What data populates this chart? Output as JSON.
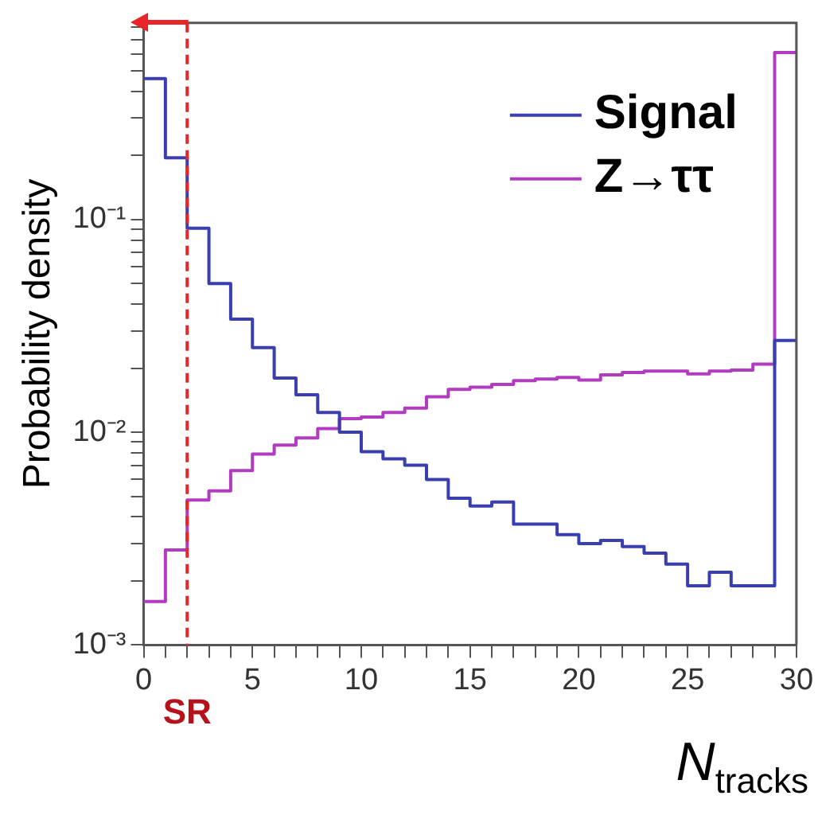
{
  "chart_data": {
    "type": "histogram",
    "ylabel": "Probability density",
    "xlabel": "N$_{tracks}$",
    "bins": [
      0,
      1,
      2,
      3,
      4,
      5,
      6,
      7,
      8,
      9,
      10,
      11,
      12,
      13,
      14,
      15,
      16,
      17,
      18,
      19,
      20,
      21,
      22,
      23,
      24,
      25,
      26,
      27,
      28,
      29,
      30
    ],
    "series": [
      {
        "name": "Signal",
        "color": "#3a3fb0",
        "values": [
          0.46,
          0.195,
          0.091,
          0.05,
          0.034,
          0.025,
          0.018,
          0.015,
          0.0124,
          0.01,
          0.0081,
          0.0075,
          0.007,
          0.006,
          0.0049,
          0.0045,
          0.0047,
          0.0037,
          0.0037,
          0.0033,
          0.003,
          0.0031,
          0.0029,
          0.0027,
          0.0024,
          0.0019,
          0.0022,
          0.0019,
          0.0019,
          0.027
        ]
      },
      {
        "name": "Z→ττ",
        "color": "#b23cc0",
        "values": [
          0.0016,
          0.0028,
          0.0048,
          0.0053,
          0.0066,
          0.0079,
          0.0087,
          0.0094,
          0.0104,
          0.0116,
          0.0118,
          0.0124,
          0.013,
          0.0147,
          0.0159,
          0.0163,
          0.0168,
          0.0175,
          0.0178,
          0.0181,
          0.0176,
          0.0186,
          0.0191,
          0.0194,
          0.0194,
          0.0188,
          0.0194,
          0.0196,
          0.0209,
          0.61
        ]
      }
    ],
    "xlim": [
      0,
      30
    ],
    "xticks": [
      0,
      {
        "value": 1,
        "label": null
      },
      {
        "value": 2,
        "label": null
      },
      {
        "value": 3,
        "label": null
      },
      {
        "value": 4,
        "label": null
      },
      5,
      {
        "value": 6,
        "label": null
      },
      {
        "value": 7,
        "label": null
      },
      {
        "value": 8,
        "label": null
      },
      {
        "value": 9,
        "label": null
      },
      10,
      {
        "value": 11,
        "label": null
      },
      {
        "value": 12,
        "label": null
      },
      {
        "value": 13,
        "label": null
      },
      {
        "value": 14,
        "label": null
      },
      15,
      {
        "value": 16,
        "label": null
      },
      {
        "value": 17,
        "label": null
      },
      {
        "value": 18,
        "label": null
      },
      {
        "value": 19,
        "label": null
      },
      20,
      {
        "value": 21,
        "label": null
      },
      {
        "value": 22,
        "label": null
      },
      {
        "value": 23,
        "label": null
      },
      {
        "value": 24,
        "label": null
      },
      25,
      {
        "value": 26,
        "label": null
      },
      {
        "value": 27,
        "label": null
      },
      {
        "value": 28,
        "label": null
      },
      {
        "value": 29,
        "label": null
      },
      30
    ],
    "ylim": [
      0.001,
      0.84
    ],
    "yticks": [
      {
        "value": 0.001,
        "label": "10⁻³"
      },
      {
        "value": 0.002,
        "label": null
      },
      {
        "value": 0.003,
        "label": null
      },
      {
        "value": 0.004,
        "label": null
      },
      {
        "value": 0.005,
        "label": null
      },
      {
        "value": 0.006,
        "label": null
      },
      {
        "value": 0.007,
        "label": null
      },
      {
        "value": 0.008,
        "label": null
      },
      {
        "value": 0.009,
        "label": null
      },
      {
        "value": 0.01,
        "label": "10⁻²"
      },
      {
        "value": 0.02,
        "label": null
      },
      {
        "value": 0.03,
        "label": null
      },
      {
        "value": 0.04,
        "label": null
      },
      {
        "value": 0.05,
        "label": null
      },
      {
        "value": 0.06,
        "label": null
      },
      {
        "value": 0.07,
        "label": null
      },
      {
        "value": 0.08,
        "label": null
      },
      {
        "value": 0.09,
        "label": null
      },
      {
        "value": 0.1,
        "label": "10⁻¹"
      },
      {
        "value": 0.2,
        "label": null
      },
      {
        "value": 0.3,
        "label": null
      },
      {
        "value": 0.4,
        "label": null
      },
      {
        "value": 0.5,
        "label": null
      },
      {
        "value": 0.6,
        "label": null
      },
      {
        "value": 0.7,
        "label": null
      },
      {
        "value": 0.8,
        "label": null
      }
    ],
    "log": "y",
    "grid": false,
    "legend": "top right",
    "ref_lines": [
      {
        "axis": "x",
        "value": 2,
        "label": "SR",
        "color": "#e8262a",
        "line_style": "dashed"
      }
    ]
  }
}
